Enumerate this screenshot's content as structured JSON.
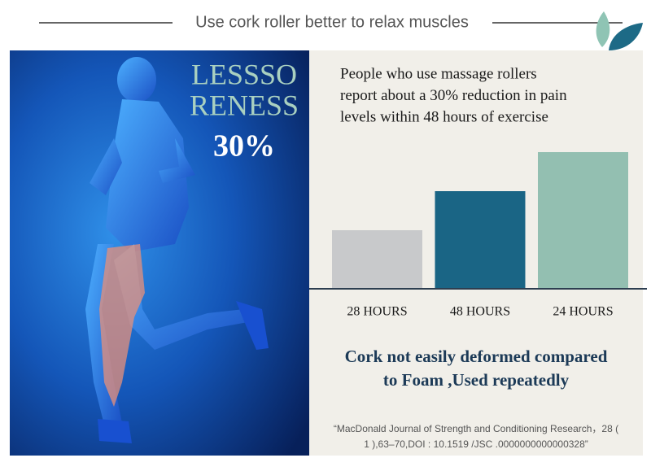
{
  "header": {
    "title": "Use cork roller better to relax  muscles"
  },
  "hero": {
    "line1": "LESSSO",
    "line2": "RENESS",
    "figure": "30%"
  },
  "panel": {
    "intro": [
      "People who use massage rollers",
      "report about a 30% reduction in pain",
      "levels within 48 hours of exercise"
    ],
    "claim": [
      "Cork not easily deformed compared",
      "to Foam ,Used repeatedly"
    ],
    "citation": [
      "“MacDonald Journal of Strength and Conditioning Research，28 (",
      "1 ),63–70,DOI : 10.1519 /JSC .0000000000000328”"
    ]
  },
  "chart_data": {
    "type": "bar",
    "categories": [
      "28 HOURS",
      "48 HOURS",
      "24 HOURS"
    ],
    "values": [
      3,
      5,
      7
    ],
    "colors": [
      "#c8c9cb",
      "#1a6585",
      "#93bfb1"
    ]
  }
}
